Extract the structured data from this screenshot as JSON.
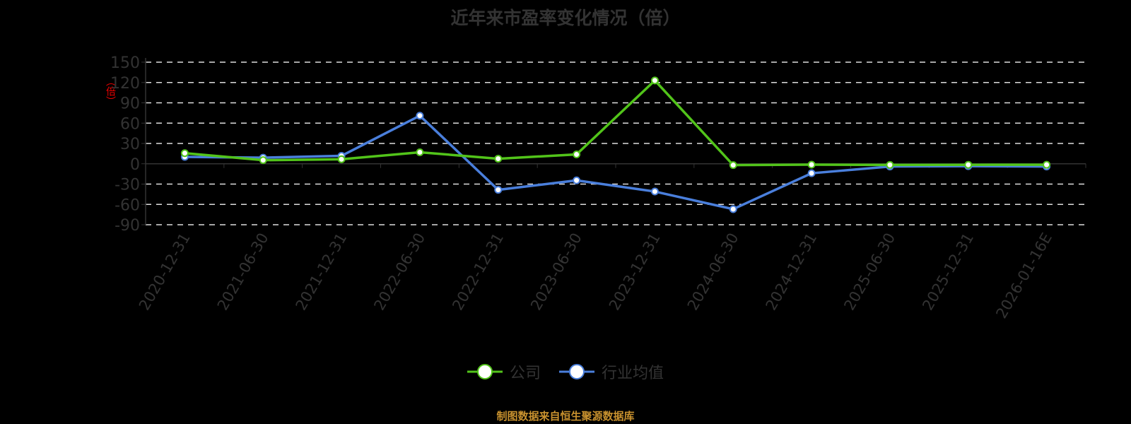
{
  "title": "近年来市盈率变化情况（倍）",
  "y_axis_unit": "（倍）",
  "source_note": "制图数据来自恒生聚源数据库",
  "legend": [
    {
      "label": "公司",
      "color": "#52c41a"
    },
    {
      "label": "行业均值",
      "color": "#4a7fdc"
    }
  ],
  "chart_data": {
    "type": "line",
    "title": "近年来市盈率变化情况（倍）",
    "xlabel": "",
    "ylabel": "倍",
    "ylim": [
      -90,
      150
    ],
    "yticks": [
      150,
      120,
      90,
      60,
      30,
      0,
      -30,
      -60,
      -90
    ],
    "grid": true,
    "legend_position": "bottom",
    "categories": [
      "2020-12-31",
      "2021-06-30",
      "2021-12-31",
      "2022-06-30",
      "2022-12-31",
      "2023-06-30",
      "2023-12-31",
      "2024-06-30",
      "2024-12-31",
      "2025-06-30",
      "2025-12-31",
      "2026-01-16E"
    ],
    "series": [
      {
        "name": "公司",
        "color": "#52c41a",
        "values": [
          15.7,
          5.3,
          6.7,
          17.0,
          7.5,
          13.8,
          123.0,
          -2.0,
          -1.3,
          -1.7,
          -1.5,
          -1.4
        ]
      },
      {
        "name": "行业均值",
        "color": "#4a7fdc",
        "values": [
          10.2,
          9.0,
          11.7,
          71.0,
          -38.5,
          -24.5,
          -41.0,
          -67.0,
          -14.0,
          -4.0,
          -3.5,
          -4.0
        ]
      }
    ]
  }
}
